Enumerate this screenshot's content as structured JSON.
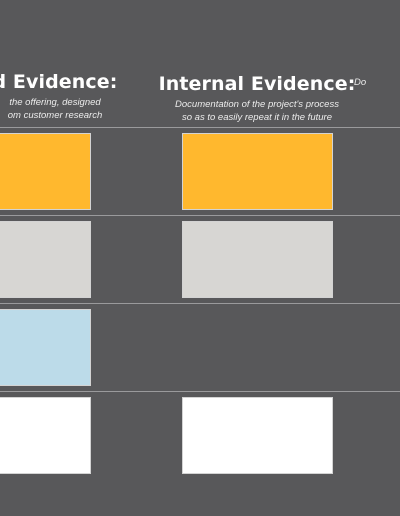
{
  "columns": [
    {
      "title": "d Evidence:",
      "description_lines": [
        "the offering, designed",
        "om customer research"
      ]
    },
    {
      "title": "Internal Evidence:",
      "description_lines": [
        "Documentation of the project's process",
        "so as to easily repeat it in the future"
      ]
    },
    {
      "title": "",
      "description_lines": [
        "Do"
      ]
    }
  ],
  "card_colors": {
    "yellow": "#ffb82e",
    "grey": "#d7d6d3",
    "blue": "#bcdbe9",
    "white": "#ffffff",
    "background": "#58585a"
  }
}
